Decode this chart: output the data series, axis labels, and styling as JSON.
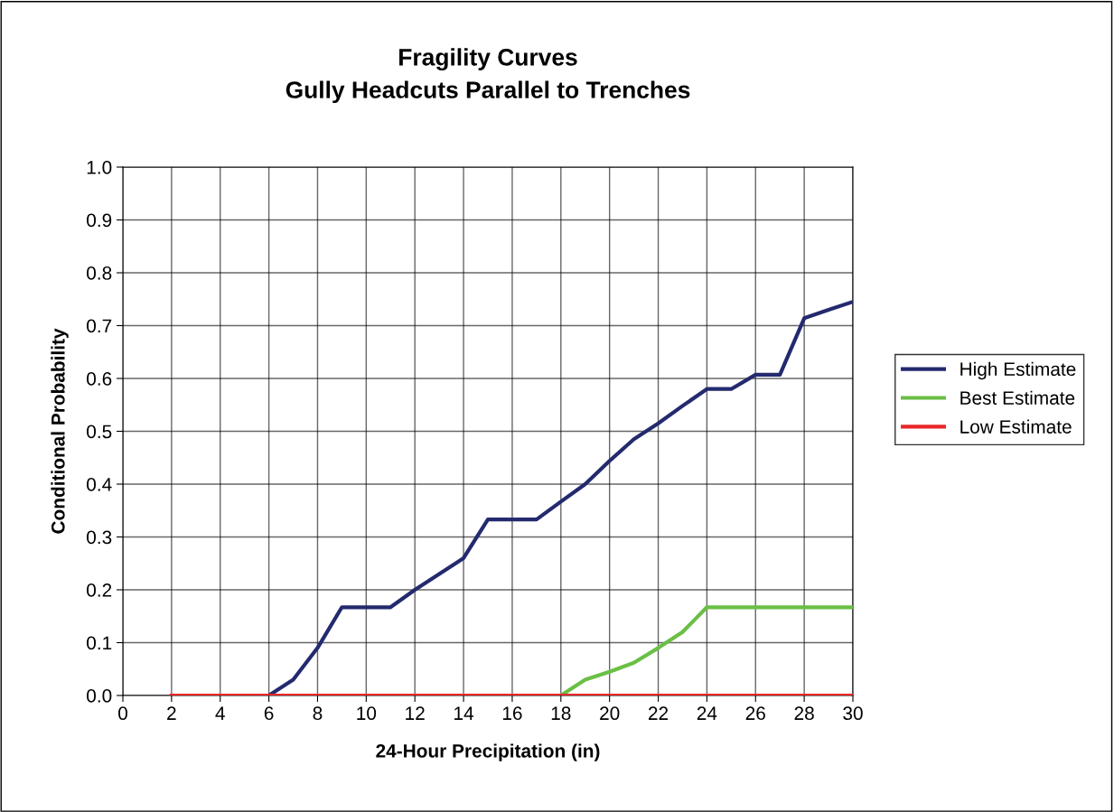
{
  "chart_data": {
    "type": "line",
    "title": "Fragility Curves\nGully Headcuts Parallel to Trenches",
    "xlabel": "24-Hour Precipitation (in)",
    "ylabel": "Conditional Probability",
    "series": [
      {
        "name": "High Estimate",
        "color": "#232a6e",
        "x": [
          6,
          7,
          8,
          9,
          10,
          11,
          12,
          13,
          14,
          15,
          16,
          17,
          18,
          19,
          20,
          21,
          22,
          23,
          24,
          25,
          26,
          27,
          28,
          29,
          30
        ],
        "values": [
          0,
          0.03,
          0.09,
          0.167,
          0.167,
          0.167,
          0.2,
          0.23,
          0.26,
          0.333,
          0.333,
          0.333,
          0.367,
          0.4,
          0.444,
          0.485,
          0.515,
          0.548,
          0.58,
          0.58,
          0.607,
          0.607,
          0.714,
          0.73,
          0.745
        ]
      },
      {
        "name": "Best Estimate",
        "color": "#6abf45",
        "x": [
          18,
          19,
          20,
          21,
          22,
          23,
          24,
          25,
          26,
          27,
          28,
          29,
          30
        ],
        "values": [
          0,
          0.03,
          0.045,
          0.062,
          0.09,
          0.12,
          0.167,
          0.167,
          0.167,
          0.167,
          0.167,
          0.167,
          0.167
        ]
      },
      {
        "name": "Low Estimate",
        "color": "#e8272a",
        "x": [
          2,
          30
        ],
        "values": [
          0,
          0
        ]
      }
    ],
    "xlim": [
      0,
      30
    ],
    "xticks": [
      0,
      2,
      4,
      6,
      8,
      10,
      12,
      14,
      16,
      18,
      20,
      22,
      24,
      26,
      28,
      30
    ],
    "ylim": [
      0,
      1.0
    ],
    "yticks": [
      {
        "value": 0,
        "label": "0.0"
      },
      {
        "value": 0.1,
        "label": "0.1"
      },
      {
        "value": 0.2,
        "label": "0.2"
      },
      {
        "value": 0.3,
        "label": "0.3"
      },
      {
        "value": 0.4,
        "label": "0.4"
      },
      {
        "value": 0.5,
        "label": "0.5"
      },
      {
        "value": 0.6,
        "label": "0.6"
      },
      {
        "value": 0.7,
        "label": "0.7"
      },
      {
        "value": 0.8,
        "label": "0.8"
      },
      {
        "value": 0.9,
        "label": "0.9"
      },
      {
        "value": 1.0,
        "label": "1.0"
      }
    ],
    "grid": true,
    "legend": "right",
    "marker": "none",
    "line_style": "solid"
  }
}
